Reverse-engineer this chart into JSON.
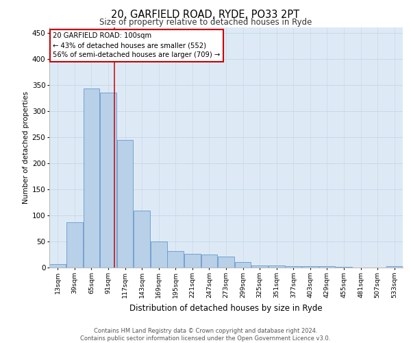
{
  "title": "20, GARFIELD ROAD, RYDE, PO33 2PT",
  "subtitle": "Size of property relative to detached houses in Ryde",
  "xlabel": "Distribution of detached houses by size in Ryde",
  "ylabel": "Number of detached properties",
  "footer_line1": "Contains HM Land Registry data © Crown copyright and database right 2024.",
  "footer_line2": "Contains public sector information licensed under the Open Government Licence v3.0.",
  "bar_color": "#b8d0e8",
  "bar_edge_color": "#6699cc",
  "annotation_line_color": "#cc0000",
  "annotation_text_line1": "20 GARFIELD ROAD: 100sqm",
  "annotation_text_line2": "← 43% of detached houses are smaller (552)",
  "annotation_text_line3": "56% of semi-detached houses are larger (709) →",
  "property_line_x": 100,
  "bin_starts": [
    13,
    39,
    65,
    91,
    117,
    143,
    169,
    195,
    221,
    247,
    273,
    299,
    325,
    351,
    377,
    403,
    429,
    455,
    481,
    507,
    533
  ],
  "values": [
    6,
    87,
    343,
    335,
    245,
    109,
    50,
    32,
    26,
    25,
    21,
    10,
    4,
    4,
    2,
    2,
    2,
    1,
    0,
    0,
    2
  ],
  "ylim": [
    0,
    460
  ],
  "yticks": [
    0,
    50,
    100,
    150,
    200,
    250,
    300,
    350,
    400,
    450
  ],
  "grid_color": "#c8d8e8",
  "plot_bg_color": "#ddeaf6"
}
